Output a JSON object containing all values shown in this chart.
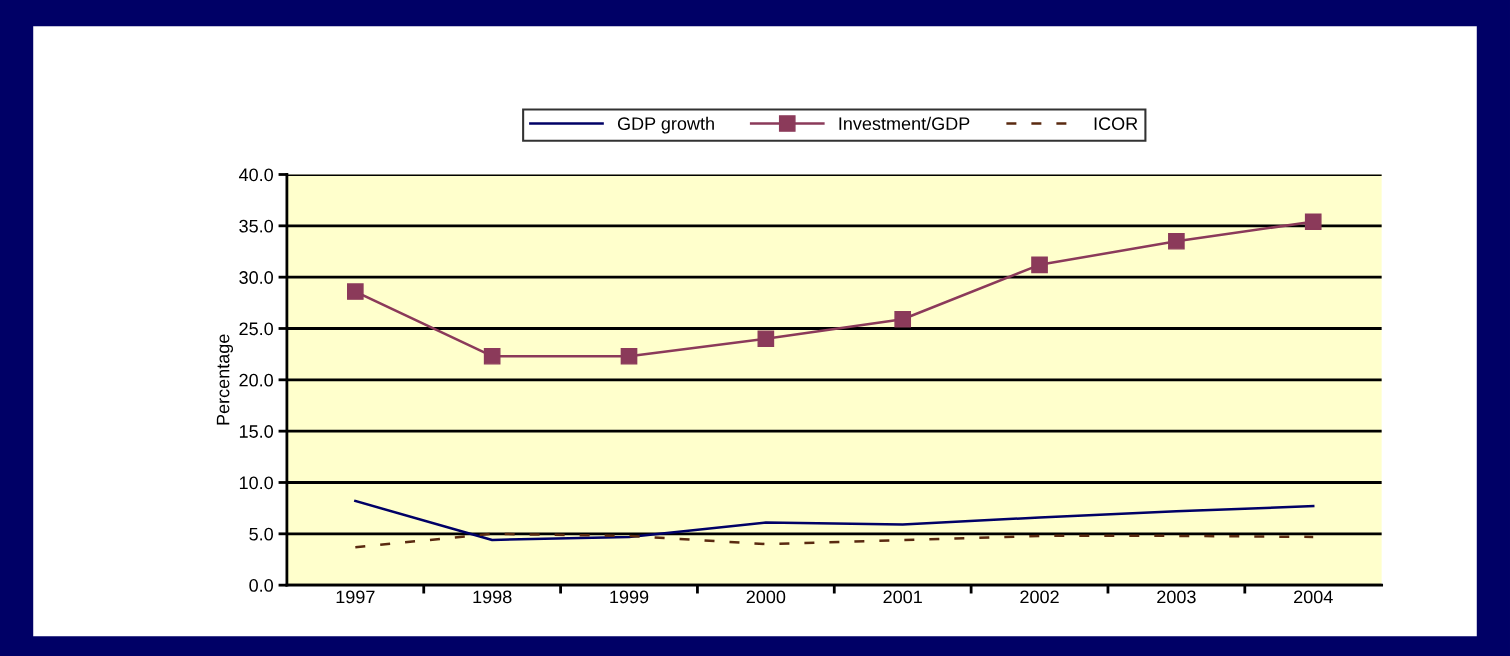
{
  "chart_data": {
    "type": "line",
    "ylabel": "Percentage",
    "categories": [
      "1997",
      "1998",
      "1999",
      "2000",
      "2001",
      "2002",
      "2003",
      "2004"
    ],
    "series": [
      {
        "name": "GDP growth",
        "color": "#000066",
        "values": [
          8.2,
          4.4,
          4.7,
          6.1,
          5.9,
          6.6,
          7.2,
          7.7
        ],
        "marker": "none",
        "line_style": "solid"
      },
      {
        "name": "Investment/GDP",
        "color": "#8b3a5a",
        "values": [
          28.6,
          22.3,
          22.3,
          24.0,
          25.9,
          31.2,
          33.5,
          35.4
        ],
        "marker": "square",
        "line_style": "solid"
      },
      {
        "name": "ICOR",
        "color": "#5a2a10",
        "values": [
          3.7,
          5.0,
          4.8,
          4.0,
          4.4,
          4.8,
          4.8,
          4.7
        ],
        "marker": "none",
        "line_style": "dashed"
      }
    ],
    "ylim": [
      0,
      40
    ],
    "yticks": [
      {
        "value": 0,
        "label": "0.0"
      },
      {
        "value": 5,
        "label": "5.0"
      },
      {
        "value": 10,
        "label": "10.0"
      },
      {
        "value": 15,
        "label": "15.0"
      },
      {
        "value": 20,
        "label": "20.0"
      },
      {
        "value": 25,
        "label": "25.0"
      },
      {
        "value": 30,
        "label": "30.0"
      },
      {
        "value": 35,
        "label": "35.0"
      },
      {
        "value": 40,
        "label": "40.0"
      }
    ],
    "grid": "y",
    "legend": "top"
  }
}
